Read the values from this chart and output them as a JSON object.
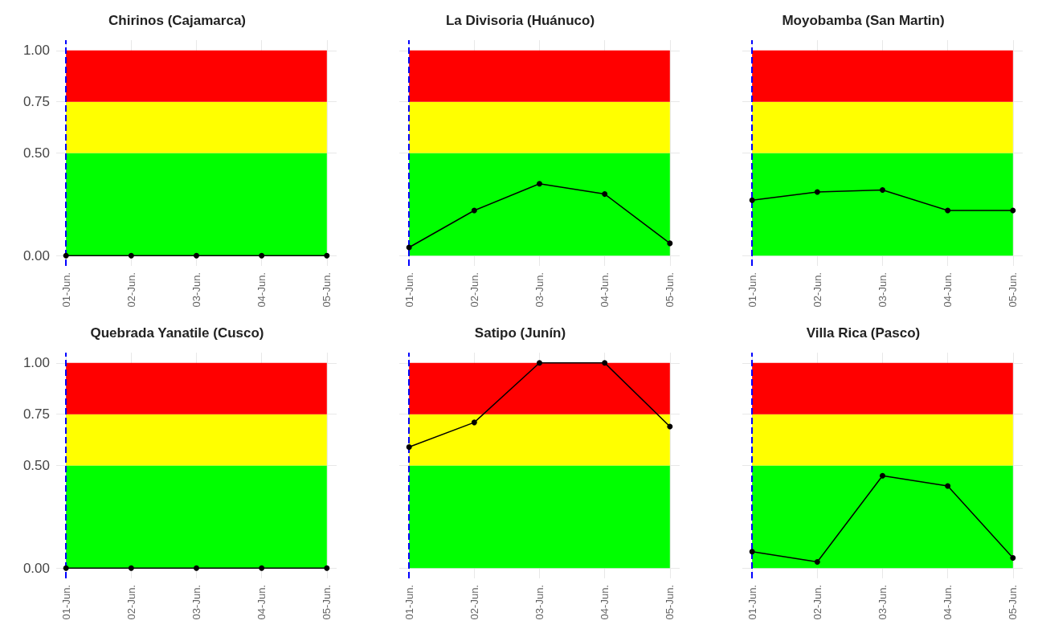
{
  "chart_data": [
    {
      "type": "line",
      "title": "Chirinos (Cajamarca)",
      "categories": [
        "01-Jun.",
        "02-Jun.",
        "03-Jun.",
        "04-Jun.",
        "05-Jun."
      ],
      "values": [
        0,
        0,
        0,
        0,
        0
      ],
      "color": "#000000",
      "marker": "circle",
      "ylim": [
        -0.05,
        1.05
      ],
      "yticks": [
        {
          "value": 0,
          "label": "0.00"
        },
        {
          "value": 0.5,
          "label": "0.50"
        },
        {
          "value": 0.75,
          "label": "0.75"
        },
        {
          "value": 1,
          "label": "1.00"
        }
      ],
      "grid": true,
      "bands": [
        {
          "axis": "y",
          "from": 0,
          "to": 0.5,
          "color": "#00ff00"
        },
        {
          "axis": "y",
          "from": 0.5,
          "to": 0.75,
          "color": "#ffff00"
        },
        {
          "axis": "y",
          "from": 0.75,
          "to": 1,
          "color": "#ff0000"
        }
      ],
      "ref_lines": [
        {
          "axis": "x",
          "value": "01-Jun.",
          "color": "#0000ff",
          "line_style": "dashed"
        }
      ]
    },
    {
      "type": "line",
      "title": "La Divisoria (Huánuco)",
      "categories": [
        "01-Jun.",
        "02-Jun.",
        "03-Jun.",
        "04-Jun.",
        "05-Jun."
      ],
      "values": [
        0.04,
        0.22,
        0.35,
        0.3,
        0.06
      ],
      "color": "#000000",
      "marker": "circle",
      "ylim": [
        -0.05,
        1.05
      ],
      "yticks": [
        0,
        0.5,
        0.75,
        1
      ],
      "grid": true,
      "tick_labels": "x",
      "bands": [
        {
          "axis": "y",
          "from": 0,
          "to": 0.5,
          "color": "#00ff00"
        },
        {
          "axis": "y",
          "from": 0.5,
          "to": 0.75,
          "color": "#ffff00"
        },
        {
          "axis": "y",
          "from": 0.75,
          "to": 1,
          "color": "#ff0000"
        }
      ],
      "ref_lines": [
        {
          "axis": "x",
          "value": "01-Jun.",
          "color": "#0000ff",
          "line_style": "dashed"
        }
      ]
    },
    {
      "type": "line",
      "title": "Moyobamba (San Martin)",
      "categories": [
        "01-Jun.",
        "02-Jun.",
        "03-Jun.",
        "04-Jun.",
        "05-Jun."
      ],
      "values": [
        0.27,
        0.31,
        0.32,
        0.22,
        0.22
      ],
      "color": "#000000",
      "marker": "circle",
      "ylim": [
        -0.05,
        1.05
      ],
      "yticks": [
        0,
        0.5,
        0.75,
        1
      ],
      "grid": true,
      "tick_labels": "x",
      "bands": [
        {
          "axis": "y",
          "from": 0,
          "to": 0.5,
          "color": "#00ff00"
        },
        {
          "axis": "y",
          "from": 0.5,
          "to": 0.75,
          "color": "#ffff00"
        },
        {
          "axis": "y",
          "from": 0.75,
          "to": 1,
          "color": "#ff0000"
        }
      ],
      "ref_lines": [
        {
          "axis": "x",
          "value": "01-Jun.",
          "color": "#0000ff",
          "line_style": "dashed"
        }
      ]
    },
    {
      "type": "line",
      "title": "Quebrada Yanatile (Cusco)",
      "categories": [
        "01-Jun.",
        "02-Jun.",
        "03-Jun.",
        "04-Jun.",
        "05-Jun."
      ],
      "values": [
        0,
        0,
        0,
        0,
        0
      ],
      "color": "#000000",
      "marker": "circle",
      "ylim": [
        -0.05,
        1.05
      ],
      "yticks": [
        {
          "value": 0,
          "label": "0.00"
        },
        {
          "value": 0.5,
          "label": "0.50"
        },
        {
          "value": 0.75,
          "label": "0.75"
        },
        {
          "value": 1,
          "label": "1.00"
        }
      ],
      "grid": true,
      "bands": [
        {
          "axis": "y",
          "from": 0,
          "to": 0.5,
          "color": "#00ff00"
        },
        {
          "axis": "y",
          "from": 0.5,
          "to": 0.75,
          "color": "#ffff00"
        },
        {
          "axis": "y",
          "from": 0.75,
          "to": 1,
          "color": "#ff0000"
        }
      ],
      "ref_lines": [
        {
          "axis": "x",
          "value": "01-Jun.",
          "color": "#0000ff",
          "line_style": "dashed"
        }
      ]
    },
    {
      "type": "line",
      "title": "Satipo (Junín)",
      "categories": [
        "01-Jun.",
        "02-Jun.",
        "03-Jun.",
        "04-Jun.",
        "05-Jun."
      ],
      "values": [
        0.59,
        0.71,
        1,
        1,
        0.69
      ],
      "color": "#000000",
      "marker": "circle",
      "ylim": [
        -0.05,
        1.05
      ],
      "yticks": [
        0,
        0.5,
        0.75,
        1
      ],
      "grid": true,
      "tick_labels": "x",
      "bands": [
        {
          "axis": "y",
          "from": 0,
          "to": 0.5,
          "color": "#00ff00"
        },
        {
          "axis": "y",
          "from": 0.5,
          "to": 0.75,
          "color": "#ffff00"
        },
        {
          "axis": "y",
          "from": 0.75,
          "to": 1,
          "color": "#ff0000"
        }
      ],
      "ref_lines": [
        {
          "axis": "x",
          "value": "01-Jun.",
          "color": "#0000ff",
          "line_style": "dashed"
        }
      ]
    },
    {
      "type": "line",
      "title": "Villa Rica (Pasco)",
      "categories": [
        "01-Jun.",
        "02-Jun.",
        "03-Jun.",
        "04-Jun.",
        "05-Jun."
      ],
      "values": [
        0.08,
        0.03,
        0.45,
        0.4,
        0.05
      ],
      "color": "#000000",
      "marker": "circle",
      "ylim": [
        -0.05,
        1.05
      ],
      "yticks": [
        0,
        0.5,
        0.75,
        1
      ],
      "grid": true,
      "tick_labels": "x",
      "bands": [
        {
          "axis": "y",
          "from": 0,
          "to": 0.5,
          "color": "#00ff00"
        },
        {
          "axis": "y",
          "from": 0.5,
          "to": 0.75,
          "color": "#ffff00"
        },
        {
          "axis": "y",
          "from": 0.75,
          "to": 1,
          "color": "#ff0000"
        }
      ],
      "ref_lines": [
        {
          "axis": "x",
          "value": "01-Jun.",
          "color": "#0000ff",
          "line_style": "dashed"
        }
      ]
    }
  ]
}
